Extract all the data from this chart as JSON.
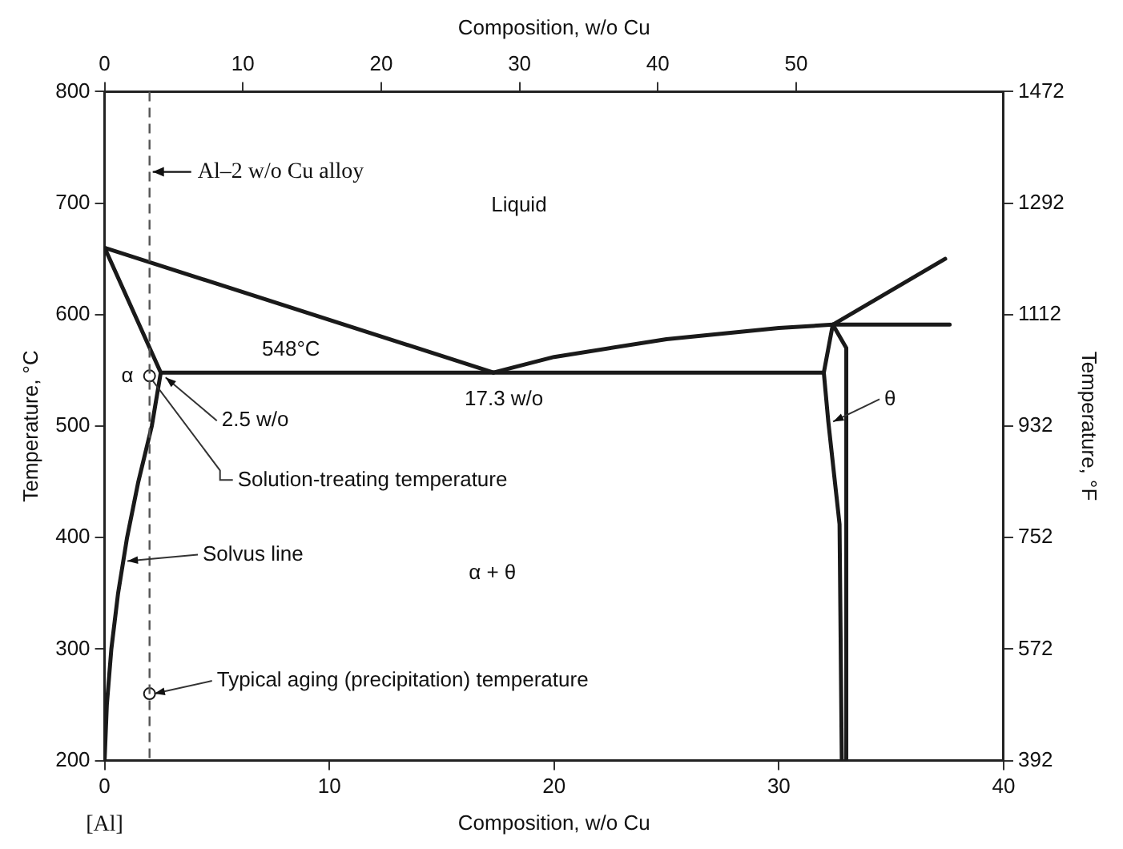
{
  "chart_data": {
    "type": "line",
    "xlabel": "Composition, w/o Cu",
    "ylabel": "Temperature, °C",
    "y2label": "Temperature, °F",
    "x2label": "Composition, w/o Cu",
    "xlim": [
      0,
      40
    ],
    "xticks": [
      0,
      10,
      20,
      30,
      40
    ],
    "ylim": [
      200,
      800
    ],
    "yticks": [
      200,
      300,
      400,
      500,
      600,
      700,
      800
    ],
    "y2lim": [
      392,
      1472
    ],
    "y2ticks": [
      392,
      572,
      752,
      932,
      1112,
      1292,
      1472
    ],
    "x2lim": [
      0,
      65
    ],
    "x2ticks": [
      0,
      10,
      20,
      30,
      40,
      50
    ],
    "legend": false,
    "grid": false,
    "line_style": "solid",
    "marker": "none",
    "series": [
      {
        "color": "#1a1a1a",
        "x": [
          0,
          17.3
        ],
        "values": [
          660,
          548
        ]
      },
      {
        "color": "#1a1a1a",
        "x": [
          17.3,
          20,
          25,
          30,
          32.4,
          37.6
        ],
        "values": [
          548,
          562,
          578,
          588,
          591,
          591
        ]
      },
      {
        "color": "#1a1a1a",
        "x": [
          32.4,
          37.4
        ],
        "values": [
          591,
          650
        ]
      },
      {
        "color": "#1a1a1a",
        "x": [
          0,
          2.5
        ],
        "values": [
          660,
          548
        ]
      },
      {
        "color": "#1a1a1a",
        "x": [
          2.5,
          2.1,
          1.5,
          1.0,
          0.6,
          0.3,
          0.1,
          0
        ],
        "values": [
          548,
          500,
          450,
          400,
          350,
          300,
          250,
          200
        ]
      },
      {
        "color": "#1a1a1a",
        "x": [
          2.5,
          32.0
        ],
        "values": [
          548,
          548
        ]
      },
      {
        "color": "#1a1a1a",
        "x": [
          32.4,
          32.0,
          32.2,
          32.7,
          32.8
        ],
        "values": [
          591,
          548,
          504,
          412,
          200
        ]
      },
      {
        "color": "#1a1a1a",
        "x": [
          32.4,
          33.0,
          33.0
        ],
        "values": [
          591,
          570,
          200
        ]
      },
      {
        "type": "scatter",
        "marker": "circle",
        "color": "#1a1a1a",
        "x": [
          2,
          2
        ],
        "values": [
          545,
          260
        ]
      }
    ],
    "ref_lines": [
      {
        "axis": "x",
        "value": 2,
        "label": "Al–2 w/o Cu alloy",
        "line_style": "dashed",
        "color": "#555555"
      }
    ],
    "annotations": [
      "Liquid",
      "α",
      "α + θ",
      "[Al]",
      {
        "text": "548°C",
        "x": 8,
        "y": 548
      },
      {
        "text": "2.5 w/o",
        "x": 2.5,
        "y": 548
      },
      {
        "text": "17.3 w/o",
        "x": 17.3,
        "y": 548
      },
      {
        "text": "Solution-treating temperature",
        "x": 2,
        "y": 545
      },
      {
        "text": "Solvus line",
        "x": 0.8,
        "y": 379
      },
      {
        "text": "Typical aging (precipitation) temperature",
        "x": 2,
        "y": 260
      },
      {
        "text": "θ",
        "x": 32.2,
        "y": 504
      }
    ]
  }
}
